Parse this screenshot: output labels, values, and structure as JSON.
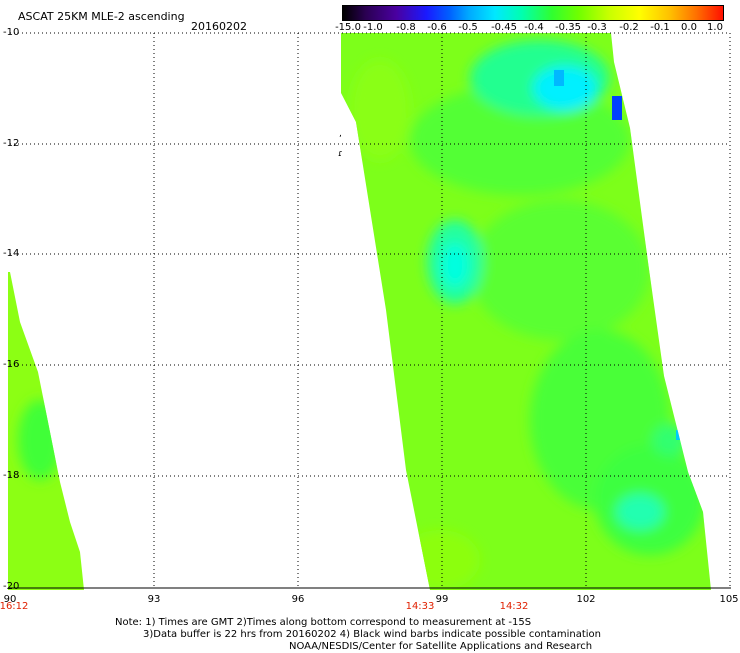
{
  "header": {
    "title": "ASCAT 25KM MLE-2 ascending",
    "date": "20160202"
  },
  "colorbar": {
    "ticks": [
      "-15.0",
      "-1.0",
      "-0.8",
      "-0.6",
      "-0.5",
      "-0.45",
      "-0.4",
      "-0.35",
      "-0.3",
      "-0.2",
      "-0.1",
      "0.0",
      "1.0"
    ]
  },
  "axes": {
    "lat_labels": [
      "-10",
      "-12",
      "-14",
      "-16",
      "-18",
      "-20"
    ],
    "lon_labels": [
      "90",
      "93",
      "96",
      "99",
      "102",
      "105"
    ],
    "lat_range": [
      -20,
      -10
    ],
    "lon_range": [
      90,
      105
    ],
    "grid": "dotted"
  },
  "times": {
    "left_swath": "16:12",
    "right_swath_start": "14:33",
    "right_swath_end": "14:32"
  },
  "notes": {
    "line1": "Note: 1) Times are GMT 2)Times along bottom correspond to measurement at -15S",
    "line2": "3)Data buffer is 22 hrs from 20160202 4) Black wind barbs indicate possible contamination",
    "line3": "NOAA/NESDIS/Center for Satellite Applications and Research"
  },
  "colors": {
    "swath_base": "#7dff1a",
    "swath_green": "#3cff3c",
    "high_cyan": "#00ffd8",
    "max_blue": "#0050ff",
    "time_red": "#e02000"
  }
}
